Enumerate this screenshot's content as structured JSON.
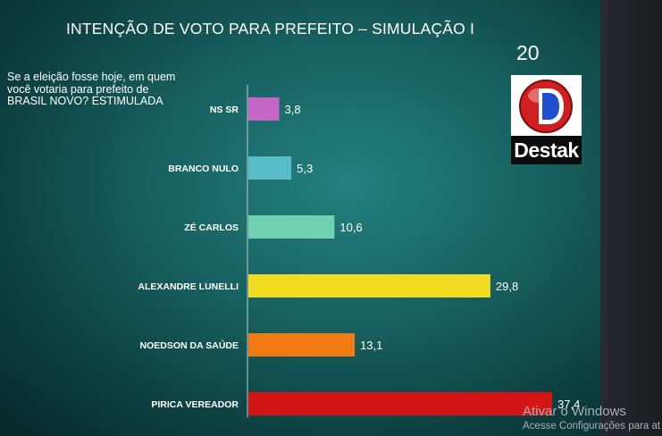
{
  "header": {
    "title": "INTENÇÃO DE VOTO PARA PREFEITO – SIMULAÇÃO I",
    "slide_number": "20",
    "question": "Se a eleição fosse hoje, em quem você votaria para prefeito de BRASIL NOVO? ESTIMULADA"
  },
  "logo": {
    "text": "Destak",
    "disc_color": "#d11f1f",
    "letter_color": "#1f4fd0"
  },
  "chart_data": {
    "type": "bar",
    "orientation": "horizontal",
    "title": "INTENÇÃO DE VOTO PARA PREFEITO – SIMULAÇÃO I",
    "categories": [
      "NS SR",
      "BRANCO NULO",
      "ZÉ CARLOS",
      "ALEXANDRE LUNELLI",
      "NOEDSON DA SAÚDE",
      "PIRICA VEREADOR"
    ],
    "values": [
      3.8,
      5.3,
      10.6,
      29.8,
      13.1,
      37.4
    ],
    "value_labels": [
      "3,8",
      "5,3",
      "10,6",
      "29,8",
      "13,1",
      "37,4"
    ],
    "colors": [
      "#c667c8",
      "#58bcc6",
      "#6fd1b0",
      "#f2dc22",
      "#f27a13",
      "#d31515"
    ],
    "xlabel": "",
    "ylabel": "",
    "xlim": [
      0,
      37.4
    ],
    "grid": false,
    "legend": "none"
  },
  "watermark": {
    "line1": "Ativar o Windows",
    "line2": "Acesse Configurações para at"
  }
}
